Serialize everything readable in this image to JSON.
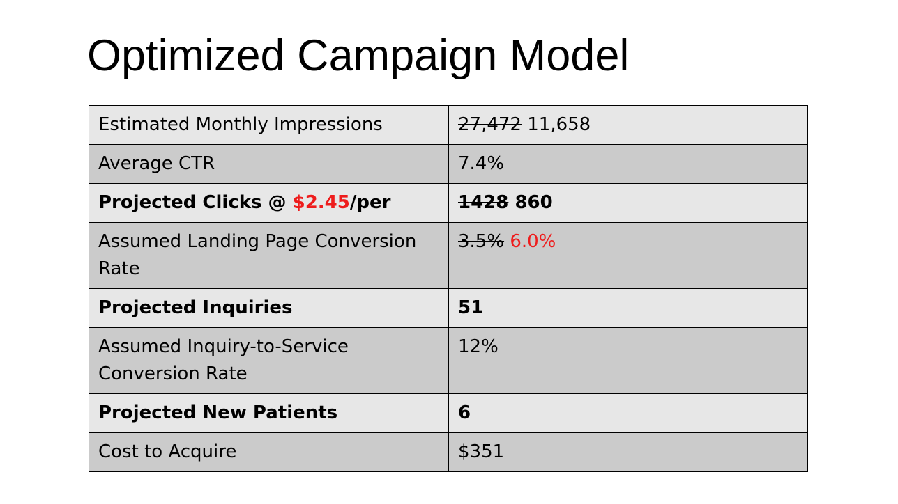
{
  "slide": {
    "title": "Optimized Campaign Model"
  },
  "colors": {
    "accent": "#ee1c1c",
    "row_light": "#e7e7e7",
    "row_dark": "#cbcbcb",
    "border": "#000000"
  },
  "table": {
    "rows": [
      {
        "label": "Estimated Monthly Impressions",
        "old_value": "27,472",
        "value": "11,658"
      },
      {
        "label": "Average CTR",
        "value": "7.4%"
      },
      {
        "label_prefix": "Projected Clicks @ ",
        "label_price": "$2.45",
        "label_suffix": "/per",
        "old_value": "1428",
        "value": "860"
      },
      {
        "label": "Assumed Landing Page Conversion Rate",
        "old_value": "3.5%",
        "value": "6.0%"
      },
      {
        "label": "Projected Inquiries",
        "value": "51"
      },
      {
        "label": "Assumed Inquiry-to-Service Conversion Rate",
        "value": "12%"
      },
      {
        "label": "Projected New Patients",
        "value": "6"
      },
      {
        "label": "Cost to Acquire",
        "value": "$351"
      }
    ]
  }
}
